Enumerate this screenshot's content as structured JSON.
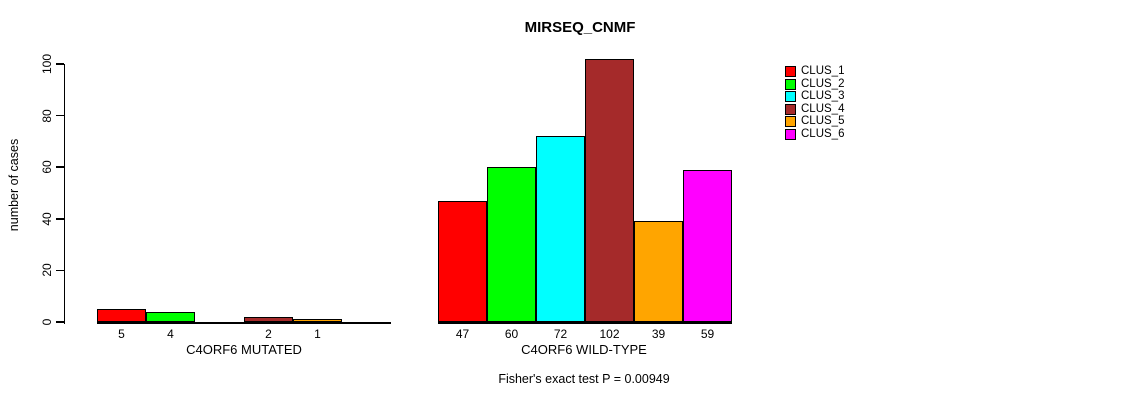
{
  "chart_data": {
    "type": "bar",
    "title": "MIRSEQ_CNMF",
    "ylabel": "number of cases",
    "xlabel": "",
    "ylim": [
      0,
      100
    ],
    "yticks": [
      0,
      20,
      40,
      60,
      80,
      100
    ],
    "grid": false,
    "legend_position": "right-top",
    "series": [
      {
        "name": "CLUS_1",
        "color": "#FF0000"
      },
      {
        "name": "CLUS_2",
        "color": "#00FF00"
      },
      {
        "name": "CLUS_3",
        "color": "#00FFFF"
      },
      {
        "name": "CLUS_4",
        "color": "#A52A2A"
      },
      {
        "name": "CLUS_5",
        "color": "#FFA500"
      },
      {
        "name": "CLUS_6",
        "color": "#FF00FF"
      }
    ],
    "groups": [
      {
        "label": "C4ORF6 MUTATED",
        "values": [
          5,
          4,
          0,
          2,
          1,
          0
        ],
        "bar_labels": [
          "5",
          "4",
          "",
          "2",
          "1",
          ""
        ]
      },
      {
        "label": "C4ORF6 WILD-TYPE",
        "values": [
          47,
          60,
          72,
          102,
          39,
          59
        ],
        "bar_labels": [
          "47",
          "60",
          "72",
          "102",
          "39",
          "59"
        ]
      }
    ],
    "annotation": "Fisher's exact test P = 0.00949",
    "axis_color": "#000000",
    "text_color": "#000000",
    "bar_border_color": "#000000"
  }
}
